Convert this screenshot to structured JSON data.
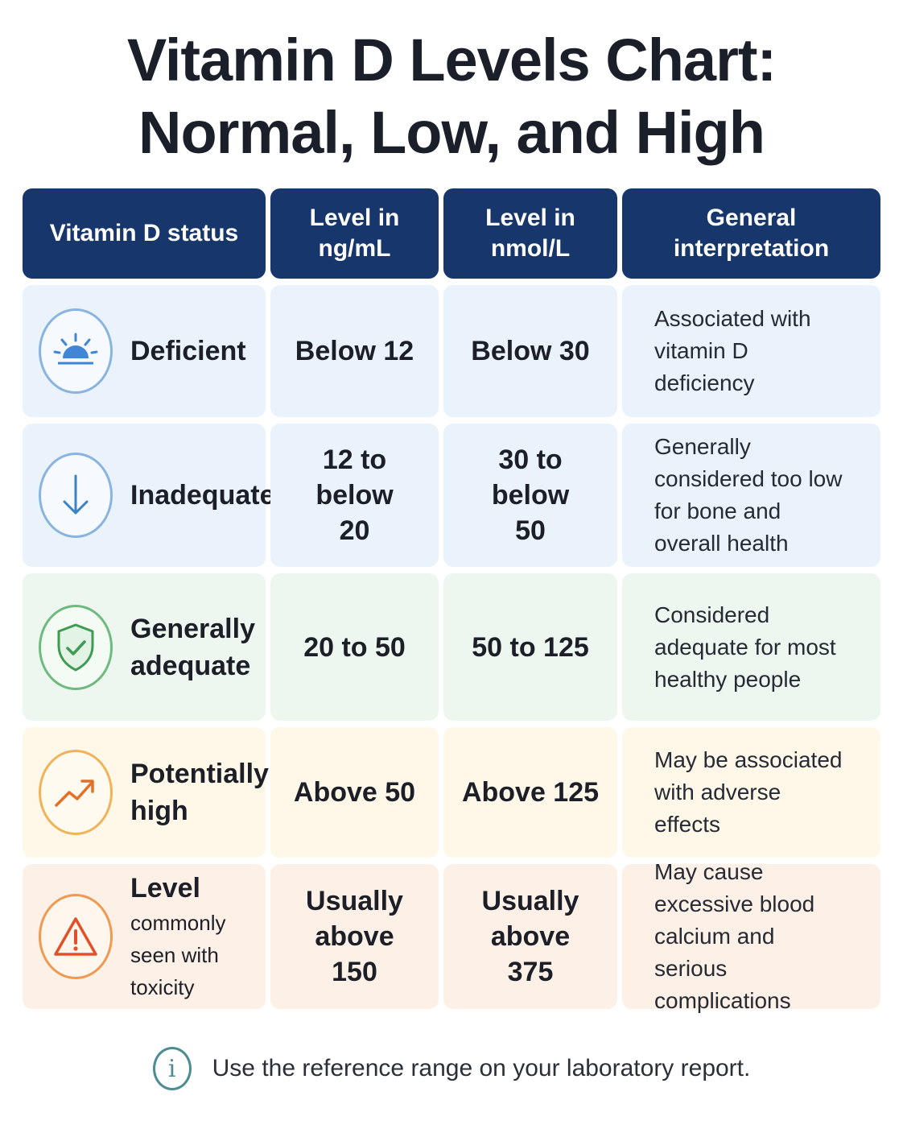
{
  "title": {
    "line1": "Vitamin D Levels Chart:",
    "line2": "Normal, Low, and High"
  },
  "table": {
    "headers": [
      "Vitamin D status",
      "Level in ng/mL",
      "Level in nmol/L",
      "General interpretation"
    ],
    "rows": [
      {
        "status": "Deficient",
        "icon": "sunrise-icon",
        "ngml": "Below 12",
        "nmol": "Below 30",
        "interpretation": "Associated with vitamin D deficiency",
        "color": "#4a90d9"
      },
      {
        "status": "Inadequate",
        "icon": "arrow-down-icon",
        "ngml": "12 to below 20",
        "nmol": "30 to below 50",
        "interpretation": "Generally considered too low for bone and overall health",
        "color": "#3b82c4"
      },
      {
        "status": "Generally adequate",
        "icon": "shield-check-icon",
        "ngml": "20 to 50",
        "nmol": "50 to 125",
        "interpretation": "Considered adequate for most healthy people",
        "color": "#3f9a52"
      },
      {
        "status": "Potentially high",
        "icon": "trend-up-icon",
        "ngml": "Above 50",
        "nmol": "Above 125",
        "interpretation": "May be associated with adverse effects",
        "color": "#e98a2a"
      },
      {
        "status_line1": "Level",
        "status_line2": "commonly seen with toxicity",
        "icon": "warning-icon",
        "ngml": "Usually above 150",
        "nmol": "Usually above 375",
        "interpretation": "May cause excessive blood calcium and serious complications",
        "color": "#e2572c"
      }
    ]
  },
  "footer": {
    "icon": "info-icon",
    "note": "Use the reference range on your laboratory report."
  }
}
